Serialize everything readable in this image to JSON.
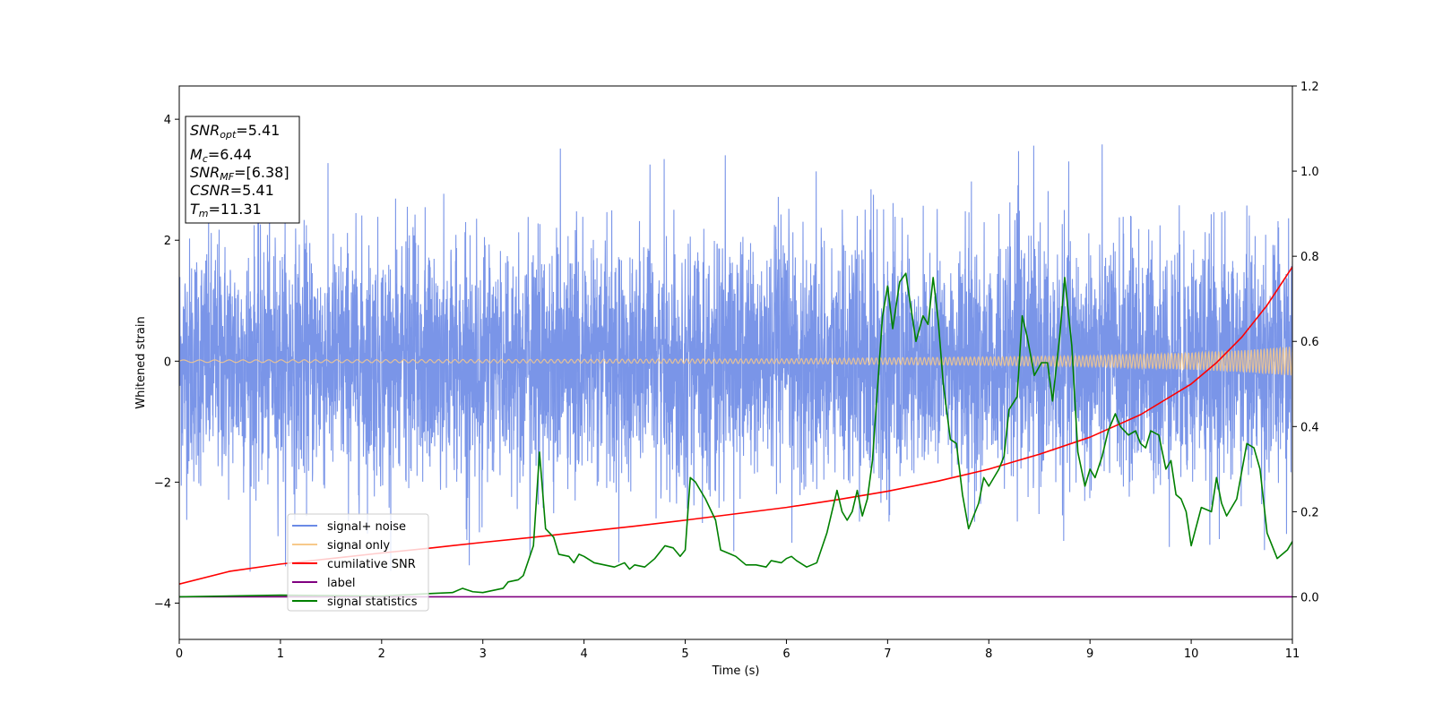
{
  "chart_data": {
    "type": "line",
    "xlabel": "Time (s)",
    "ylabel": "Whitened strain",
    "xlim": [
      0,
      11
    ],
    "ylim": [
      -4.6,
      4.55
    ],
    "y2lim": [
      -0.1,
      1.2
    ],
    "xticks": [
      "0",
      "1",
      "2",
      "3",
      "4",
      "5",
      "6",
      "7",
      "8",
      "9",
      "10",
      "11"
    ],
    "yticks": [
      "−4",
      "−2",
      "0",
      "2",
      "4"
    ],
    "y2ticks": [
      "0.0",
      "0.2",
      "0.4",
      "0.6",
      "0.8",
      "1.0",
      "1.2"
    ],
    "info_box": [
      {
        "base": "SNR",
        "sub": "opt",
        "value": "=5.41"
      },
      {
        "base": "M",
        "sub": "c",
        "value": "=6.44"
      },
      {
        "base": "SNR",
        "sub": "MF",
        "value": "=[6.38]"
      },
      {
        "base": "CSNR",
        "sub": "",
        "value": "=5.41"
      },
      {
        "base": "T",
        "sub": "m",
        "value": "=11.31"
      }
    ],
    "legend": [
      {
        "label": "signal+ noise",
        "color": "#6b8ae6"
      },
      {
        "label": "signal only",
        "color": "#f7c98a"
      },
      {
        "label": "cumilative SNR",
        "color": "#ff0000"
      },
      {
        "label": "label",
        "color": "#800080"
      },
      {
        "label": "signal statistics",
        "color": "#008000"
      }
    ],
    "series": [
      {
        "name": "signal+ noise",
        "axis": "left",
        "color": "#6b8ae6",
        "sigma": 1.0,
        "envelope_max": [
          [
            0,
            3.7
          ],
          [
            1,
            3.8
          ],
          [
            2,
            3.6
          ],
          [
            3,
            3.5
          ],
          [
            4,
            3.6
          ],
          [
            5,
            3.8
          ],
          [
            5.65,
            4.15
          ],
          [
            6,
            3.8
          ],
          [
            7,
            4.05
          ],
          [
            8,
            3.6
          ],
          [
            9,
            3.9
          ],
          [
            10,
            3.8
          ],
          [
            10.7,
            4.0
          ],
          [
            11,
            3.6
          ]
        ]
      },
      {
        "name": "signal only",
        "axis": "left",
        "color": "#f7c98a",
        "amplitude": [
          [
            0,
            0.02
          ],
          [
            2,
            0.025
          ],
          [
            4,
            0.03
          ],
          [
            6,
            0.04
          ],
          [
            8,
            0.07
          ],
          [
            9,
            0.09
          ],
          [
            10,
            0.14
          ],
          [
            10.5,
            0.18
          ],
          [
            11,
            0.24
          ]
        ]
      },
      {
        "name": "cumilative SNR",
        "axis": "right",
        "color": "#ff0000",
        "points": [
          [
            0,
            0.03
          ],
          [
            0.5,
            0.06
          ],
          [
            1,
            0.077
          ],
          [
            1.5,
            0.09
          ],
          [
            2,
            0.103
          ],
          [
            2.5,
            0.115
          ],
          [
            3,
            0.128
          ],
          [
            3.5,
            0.14
          ],
          [
            4,
            0.153
          ],
          [
            4.5,
            0.166
          ],
          [
            5,
            0.18
          ],
          [
            5.5,
            0.195
          ],
          [
            6,
            0.21
          ],
          [
            6.5,
            0.228
          ],
          [
            7,
            0.248
          ],
          [
            7.5,
            0.272
          ],
          [
            8,
            0.3
          ],
          [
            8.5,
            0.335
          ],
          [
            9,
            0.375
          ],
          [
            9.5,
            0.428
          ],
          [
            10,
            0.5
          ],
          [
            10.25,
            0.55
          ],
          [
            10.5,
            0.61
          ],
          [
            10.75,
            0.685
          ],
          [
            11,
            0.775
          ]
        ]
      },
      {
        "name": "label",
        "axis": "right",
        "color": "#800080",
        "points": [
          [
            0,
            0.0
          ],
          [
            11,
            0.0
          ]
        ]
      },
      {
        "name": "signal statistics",
        "axis": "right",
        "color": "#008000",
        "points": [
          [
            0,
            0.0
          ],
          [
            1,
            0.004
          ],
          [
            1.5,
            0.003
          ],
          [
            2,
            0.002
          ],
          [
            2.5,
            0.008
          ],
          [
            2.7,
            0.01
          ],
          [
            2.8,
            0.02
          ],
          [
            2.9,
            0.012
          ],
          [
            3.0,
            0.01
          ],
          [
            3.1,
            0.015
          ],
          [
            3.2,
            0.02
          ],
          [
            3.25,
            0.035
          ],
          [
            3.35,
            0.04
          ],
          [
            3.4,
            0.05
          ],
          [
            3.5,
            0.12
          ],
          [
            3.56,
            0.34
          ],
          [
            3.62,
            0.16
          ],
          [
            3.7,
            0.14
          ],
          [
            3.75,
            0.1
          ],
          [
            3.85,
            0.095
          ],
          [
            3.9,
            0.08
          ],
          [
            3.95,
            0.1
          ],
          [
            4.0,
            0.095
          ],
          [
            4.1,
            0.08
          ],
          [
            4.2,
            0.075
          ],
          [
            4.3,
            0.07
          ],
          [
            4.4,
            0.08
          ],
          [
            4.45,
            0.065
          ],
          [
            4.5,
            0.075
          ],
          [
            4.6,
            0.07
          ],
          [
            4.7,
            0.09
          ],
          [
            4.8,
            0.12
          ],
          [
            4.88,
            0.115
          ],
          [
            4.95,
            0.095
          ],
          [
            5.0,
            0.11
          ],
          [
            5.05,
            0.28
          ],
          [
            5.1,
            0.27
          ],
          [
            5.2,
            0.23
          ],
          [
            5.3,
            0.18
          ],
          [
            5.35,
            0.11
          ],
          [
            5.45,
            0.1
          ],
          [
            5.5,
            0.095
          ],
          [
            5.6,
            0.075
          ],
          [
            5.7,
            0.075
          ],
          [
            5.8,
            0.07
          ],
          [
            5.85,
            0.085
          ],
          [
            5.95,
            0.08
          ],
          [
            6.0,
            0.09
          ],
          [
            6.05,
            0.095
          ],
          [
            6.1,
            0.085
          ],
          [
            6.2,
            0.07
          ],
          [
            6.3,
            0.08
          ],
          [
            6.4,
            0.15
          ],
          [
            6.5,
            0.25
          ],
          [
            6.55,
            0.2
          ],
          [
            6.6,
            0.18
          ],
          [
            6.65,
            0.2
          ],
          [
            6.7,
            0.25
          ],
          [
            6.75,
            0.19
          ],
          [
            6.8,
            0.23
          ],
          [
            6.85,
            0.32
          ],
          [
            6.9,
            0.49
          ],
          [
            6.95,
            0.66
          ],
          [
            7.0,
            0.73
          ],
          [
            7.05,
            0.63
          ],
          [
            7.12,
            0.74
          ],
          [
            7.18,
            0.76
          ],
          [
            7.23,
            0.68
          ],
          [
            7.28,
            0.6
          ],
          [
            7.35,
            0.66
          ],
          [
            7.4,
            0.64
          ],
          [
            7.45,
            0.75
          ],
          [
            7.5,
            0.65
          ],
          [
            7.55,
            0.5
          ],
          [
            7.62,
            0.37
          ],
          [
            7.68,
            0.36
          ],
          [
            7.74,
            0.24
          ],
          [
            7.8,
            0.16
          ],
          [
            7.85,
            0.19
          ],
          [
            7.9,
            0.22
          ],
          [
            7.95,
            0.28
          ],
          [
            8.0,
            0.26
          ],
          [
            8.1,
            0.3
          ],
          [
            8.15,
            0.33
          ],
          [
            8.2,
            0.44
          ],
          [
            8.28,
            0.47
          ],
          [
            8.33,
            0.66
          ],
          [
            8.38,
            0.61
          ],
          [
            8.45,
            0.52
          ],
          [
            8.52,
            0.55
          ],
          [
            8.58,
            0.55
          ],
          [
            8.63,
            0.46
          ],
          [
            8.7,
            0.61
          ],
          [
            8.75,
            0.75
          ],
          [
            8.82,
            0.59
          ],
          [
            8.88,
            0.34
          ],
          [
            8.95,
            0.26
          ],
          [
            9.0,
            0.3
          ],
          [
            9.05,
            0.28
          ],
          [
            9.12,
            0.33
          ],
          [
            9.18,
            0.39
          ],
          [
            9.25,
            0.43
          ],
          [
            9.3,
            0.4
          ],
          [
            9.38,
            0.38
          ],
          [
            9.45,
            0.39
          ],
          [
            9.5,
            0.36
          ],
          [
            9.55,
            0.35
          ],
          [
            9.6,
            0.39
          ],
          [
            9.68,
            0.38
          ],
          [
            9.75,
            0.3
          ],
          [
            9.8,
            0.32
          ],
          [
            9.85,
            0.24
          ],
          [
            9.9,
            0.23
          ],
          [
            9.95,
            0.2
          ],
          [
            10.0,
            0.12
          ],
          [
            10.1,
            0.21
          ],
          [
            10.2,
            0.2
          ],
          [
            10.25,
            0.28
          ],
          [
            10.3,
            0.22
          ],
          [
            10.35,
            0.19
          ],
          [
            10.45,
            0.23
          ],
          [
            10.55,
            0.36
          ],
          [
            10.62,
            0.35
          ],
          [
            10.68,
            0.3
          ],
          [
            10.75,
            0.15
          ],
          [
            10.85,
            0.09
          ],
          [
            10.9,
            0.1
          ],
          [
            10.95,
            0.11
          ],
          [
            11.0,
            0.13
          ]
        ]
      }
    ]
  }
}
